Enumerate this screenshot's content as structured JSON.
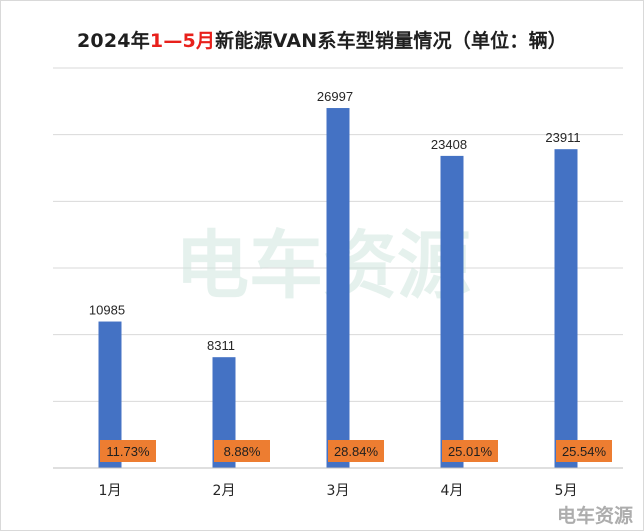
{
  "title": {
    "prefix": "2024年",
    "highlight": "1—5月",
    "suffix": "新能源VAN系车型销量情况（单位：辆）",
    "highlight_color": "#e8201b"
  },
  "watermark": {
    "center_text": "电车资源",
    "corner_text": "电车资源"
  },
  "colors": {
    "bar": "#4472c4",
    "share_badge": "#ed7d31",
    "gridline": "#d9d9d9"
  },
  "chart_data": {
    "type": "bar",
    "categories": [
      "1月",
      "2月",
      "3月",
      "4月",
      "5月"
    ],
    "values": [
      10985,
      8311,
      26997,
      23408,
      23911
    ],
    "share_labels": [
      "11.73%",
      "8.88%",
      "28.84%",
      "25.01%",
      "25.54%"
    ],
    "title": "2024年1—5月新能源VAN系车型销量情况（单位：辆）",
    "xlabel": "",
    "ylabel": "",
    "ylim": [
      0,
      30000
    ],
    "grid": true,
    "legend": "none"
  }
}
